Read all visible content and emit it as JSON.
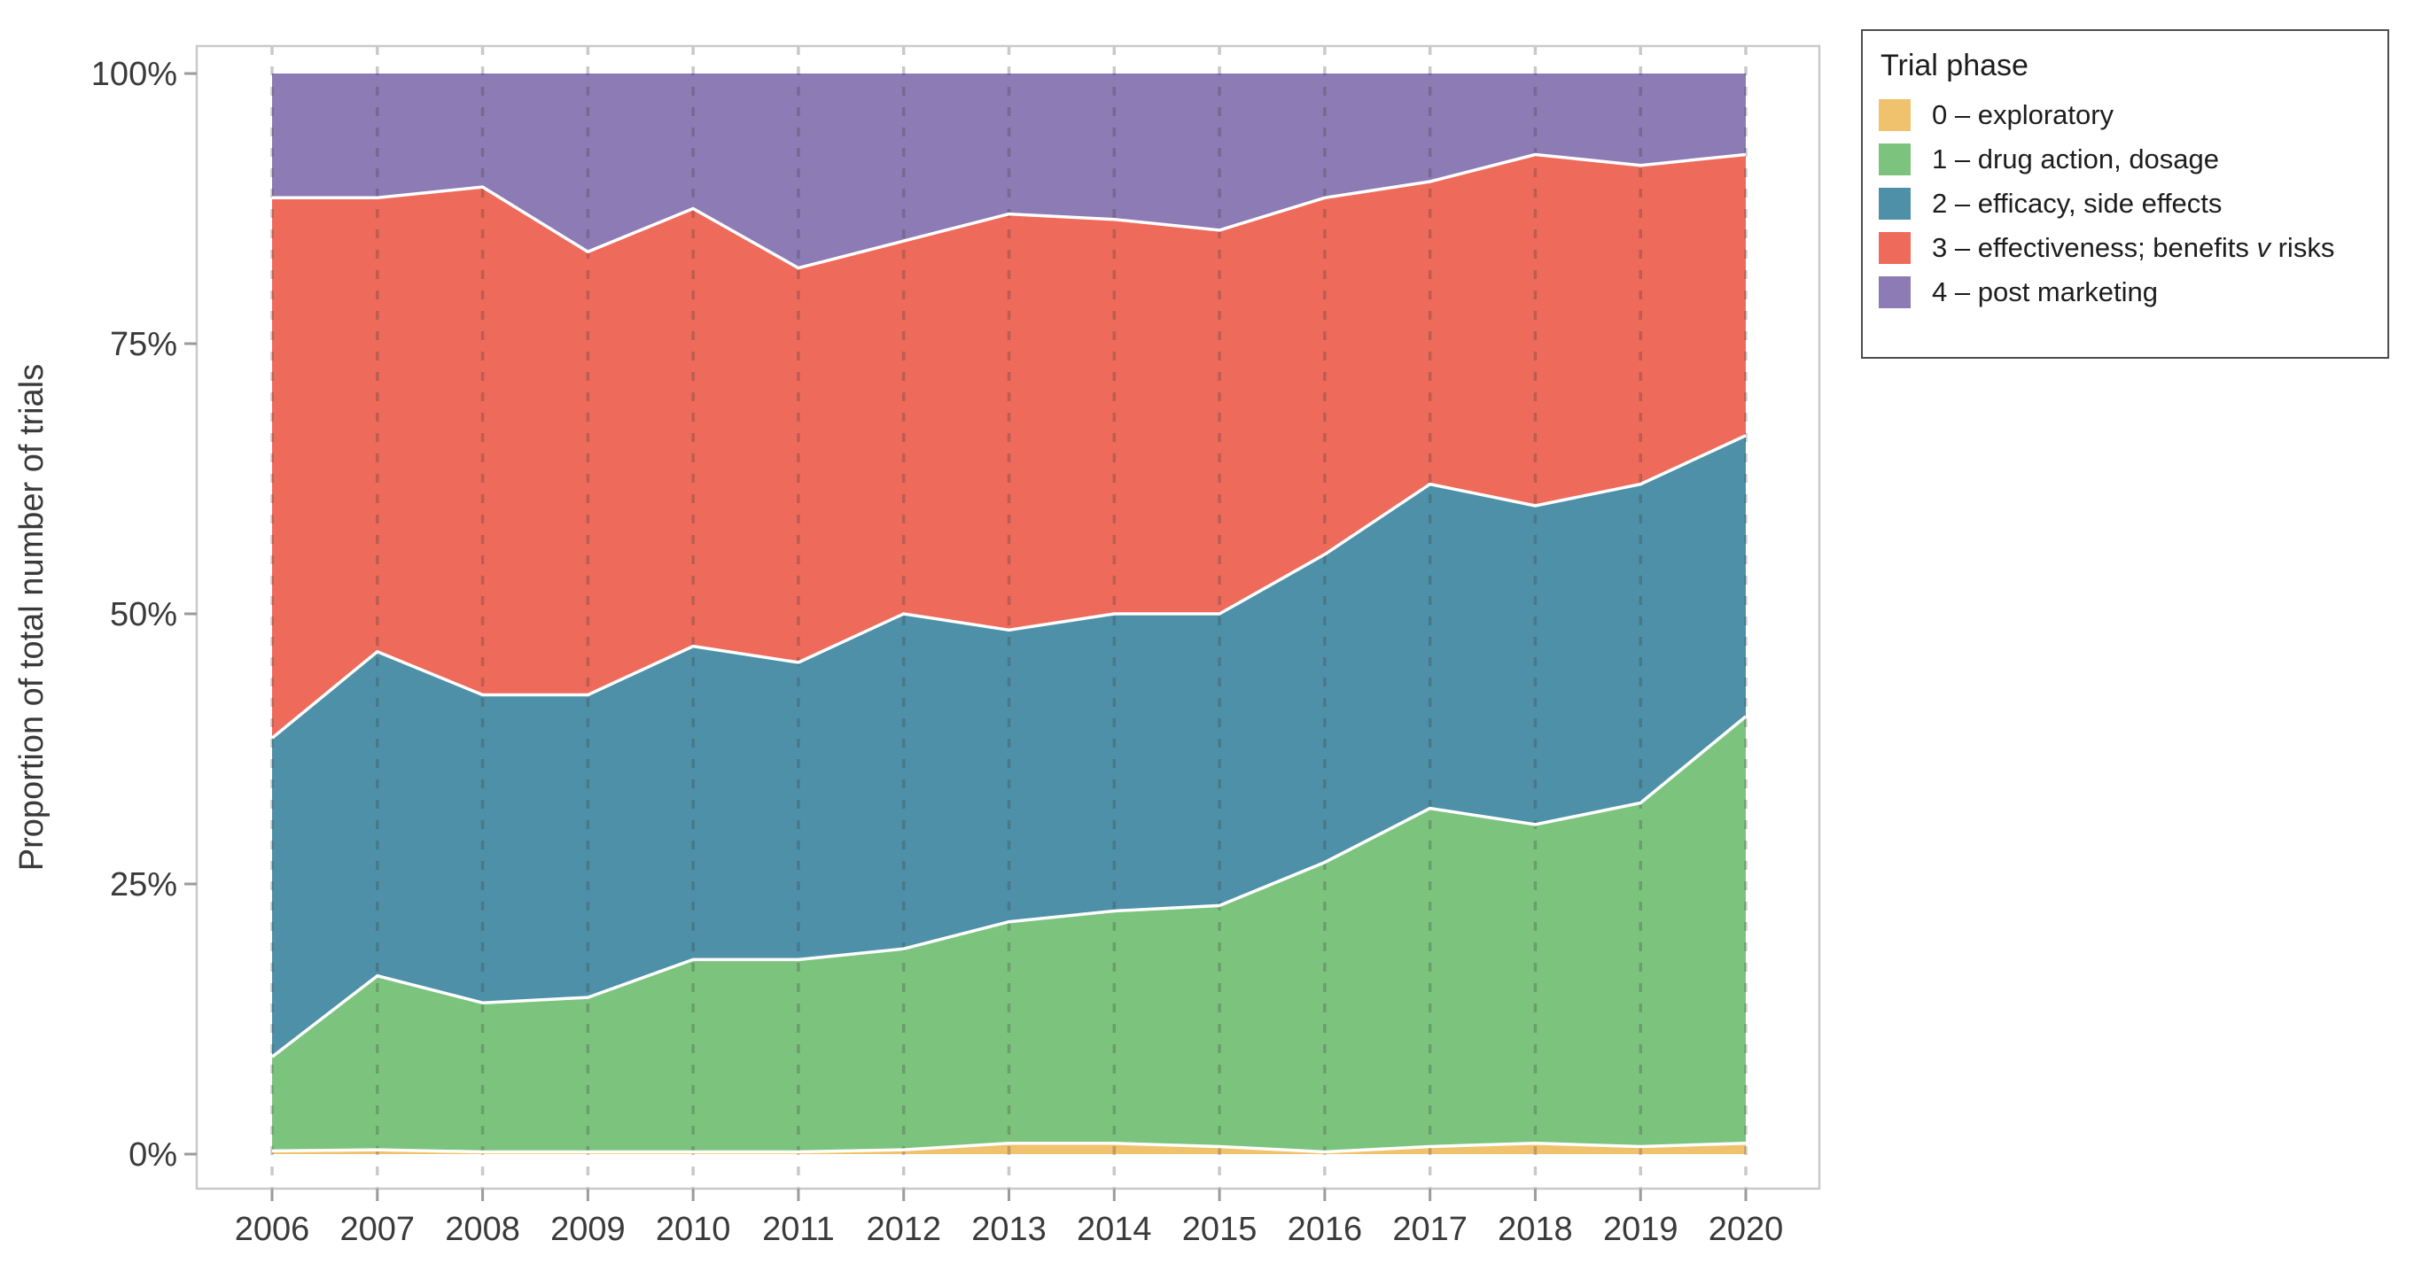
{
  "figure": {
    "background": "#FFFFFF",
    "panel_border_color": "#C9C9C9",
    "axis_text_color": "#3A3A3A",
    "tick_mark_color": "#9B9B9B",
    "y_axis": {
      "title": "Proportion of total number of trials",
      "ticks": [
        {
          "label": "0%",
          "value": 0
        },
        {
          "label": "25%",
          "value": 25
        },
        {
          "label": "50%",
          "value": 50
        },
        {
          "label": "75%",
          "value": 75
        },
        {
          "label": "100%",
          "value": 100
        }
      ]
    },
    "x_axis": {
      "ticks": [
        "2006",
        "2007",
        "2008",
        "2009",
        "2010",
        "2011",
        "2012",
        "2013",
        "2014",
        "2015",
        "2016",
        "2017",
        "2018",
        "2019",
        "2020"
      ]
    }
  },
  "legend": {
    "title": "Trial phase",
    "items": [
      {
        "label": "0 – exploratory",
        "color": "#F1C26E"
      },
      {
        "label": "1 – drug action, dosage",
        "color": "#7CC47E"
      },
      {
        "label": "2 – efficacy, side effects",
        "color": "#4E90A7"
      },
      {
        "label": "3 – effectiveness; benefits v risks",
        "label_parts": [
          {
            "text": "3 – effectiveness; benefits "
          },
          {
            "text": "v",
            "italic": true
          },
          {
            "text": " risks"
          }
        ],
        "color": "#EE6A5B"
      },
      {
        "label": "4 – post marketing",
        "color": "#8C7BB4"
      }
    ]
  },
  "chart_data": {
    "type": "area",
    "stacked": true,
    "normalized": "percent",
    "title": "",
    "xlabel": "",
    "ylabel": "Proportion of total number of trials",
    "ylim": [
      0,
      100
    ],
    "grid": "vertical-dashed",
    "legend_position": "right",
    "separator_color": "#FFFFFF",
    "x": [
      2006,
      2007,
      2008,
      2009,
      2010,
      2011,
      2012,
      2013,
      2014,
      2015,
      2016,
      2017,
      2018,
      2019,
      2020
    ],
    "series": [
      {
        "name": "0 – exploratory",
        "color": "#F1C26E",
        "values": [
          0.3,
          0.4,
          0.2,
          0.2,
          0.2,
          0.2,
          0.4,
          1.0,
          1.0,
          0.7,
          0.2,
          0.7,
          1.0,
          0.7,
          1.0
        ]
      },
      {
        "name": "1 – drug action, dosage",
        "color": "#7CC47E",
        "values": [
          8.7,
          16.1,
          13.8,
          14.3,
          17.8,
          17.8,
          18.6,
          20.5,
          21.5,
          22.3,
          26.8,
          31.3,
          29.5,
          31.8,
          39.5
        ]
      },
      {
        "name": "2 – efficacy, side effects",
        "color": "#4E90A7",
        "values": [
          29.5,
          30.0,
          28.5,
          28.0,
          29.0,
          27.5,
          31.0,
          27.0,
          27.5,
          27.0,
          28.5,
          30.0,
          29.5,
          29.5,
          26.0
        ]
      },
      {
        "name": "3 – effectiveness; benefits v risks",
        "color": "#EE6A5B",
        "values": [
          50.0,
          42.0,
          47.0,
          41.0,
          40.5,
          36.5,
          34.5,
          38.5,
          36.5,
          35.5,
          33.0,
          28.0,
          32.5,
          29.5,
          26.0
        ]
      },
      {
        "name": "4 – post marketing",
        "color": "#8C7BB4",
        "values": [
          11.5,
          11.5,
          10.5,
          16.5,
          12.5,
          18.0,
          15.5,
          13.0,
          13.5,
          14.5,
          11.5,
          10.0,
          7.5,
          8.5,
          7.5
        ]
      }
    ]
  }
}
